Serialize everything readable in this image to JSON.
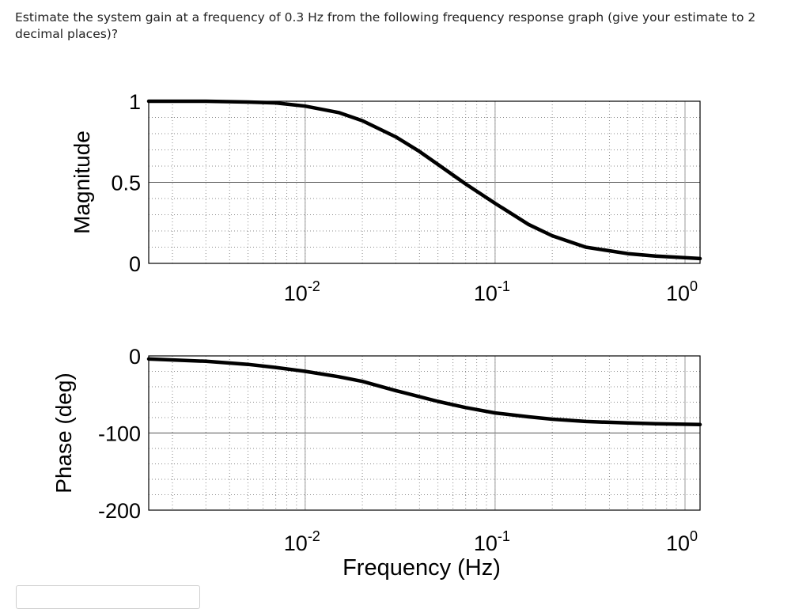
{
  "question": {
    "text": "Estimate the system gain at a frequency of 0.3 Hz from the following frequency response graph (give your estimate to 2 decimal places)?"
  },
  "answer": {
    "value": ""
  },
  "chart_data": [
    {
      "type": "line",
      "title": "",
      "xlabel": "",
      "ylabel": "Magnitude",
      "xscale": "log",
      "xlim": [
        0.0015,
        1.2
      ],
      "ylim": [
        0,
        1
      ],
      "grid": true,
      "xticks": [
        {
          "value": 0.01,
          "base": "10",
          "exp": "-2"
        },
        {
          "value": 0.1,
          "base": "10",
          "exp": "-1"
        },
        {
          "value": 1,
          "base": "10",
          "exp": "0"
        }
      ],
      "yticks": [
        {
          "value": 0,
          "label": "0"
        },
        {
          "value": 0.5,
          "label": "0.5"
        },
        {
          "value": 1,
          "label": "1"
        }
      ],
      "series": [
        {
          "x": [
            0.0015,
            0.003,
            0.005,
            0.007,
            0.01,
            0.015,
            0.02,
            0.03,
            0.04,
            0.05,
            0.07,
            0.1,
            0.15,
            0.2,
            0.3,
            0.5,
            0.7,
            1.2
          ],
          "y": [
            1.0,
            1.0,
            0.995,
            0.99,
            0.97,
            0.93,
            0.88,
            0.78,
            0.69,
            0.61,
            0.49,
            0.37,
            0.24,
            0.17,
            0.1,
            0.06,
            0.045,
            0.03
          ]
        }
      ]
    },
    {
      "type": "line",
      "title": "",
      "xlabel": "Frequency (Hz)",
      "ylabel": "Phase (deg)",
      "xscale": "log",
      "xlim": [
        0.0015,
        1.2
      ],
      "ylim": [
        -200,
        0
      ],
      "grid": true,
      "xticks": [
        {
          "value": 0.01,
          "base": "10",
          "exp": "-2"
        },
        {
          "value": 0.1,
          "base": "10",
          "exp": "-1"
        },
        {
          "value": 1,
          "base": "10",
          "exp": "0"
        }
      ],
      "yticks": [
        {
          "value": 0,
          "label": "0"
        },
        {
          "value": -100,
          "label": "-100"
        },
        {
          "value": -200,
          "label": "-200"
        }
      ],
      "series": [
        {
          "x": [
            0.0015,
            0.003,
            0.005,
            0.007,
            0.01,
            0.015,
            0.02,
            0.03,
            0.05,
            0.07,
            0.1,
            0.15,
            0.2,
            0.3,
            0.5,
            0.7,
            1.2
          ],
          "y": [
            -4,
            -7,
            -11,
            -15,
            -20,
            -27,
            -33,
            -45,
            -59,
            -67,
            -74,
            -79,
            -82,
            -85,
            -87,
            -88,
            -89
          ]
        }
      ]
    }
  ]
}
